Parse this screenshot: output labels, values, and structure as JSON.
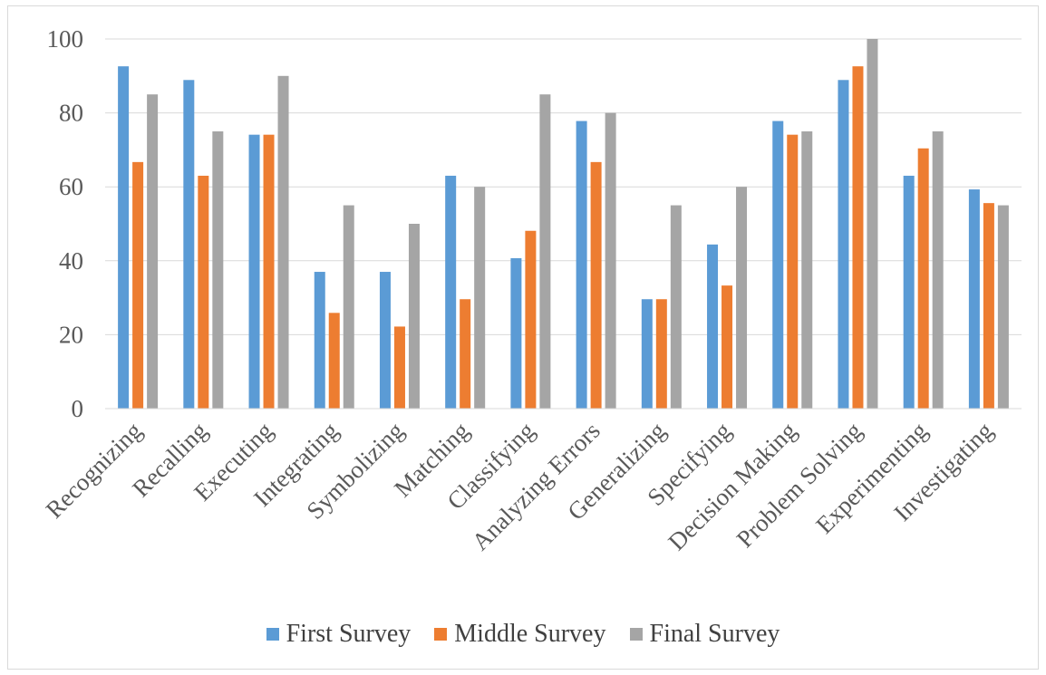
{
  "chart_data": {
    "type": "bar",
    "title": "",
    "xlabel": "",
    "ylabel": "",
    "categories": [
      "Recognizing",
      "Recalling",
      "Executing",
      "Integrating",
      "Symbolizing",
      "Matching",
      "Classifying",
      "Analyzing Errors",
      "Generalizing",
      "Specifying",
      "Decision Making",
      "Problem Solving",
      "Experimenting",
      "Investigating"
    ],
    "series": [
      {
        "name": "First Survey",
        "color": "#5b9bd5",
        "values": [
          92.6,
          88.9,
          74.1,
          37.0,
          37.0,
          63.0,
          40.7,
          77.8,
          29.6,
          44.4,
          77.8,
          88.9,
          63.0,
          59.3
        ]
      },
      {
        "name": "Middle Survey",
        "color": "#ed7d31",
        "values": [
          66.7,
          63.0,
          74.1,
          25.9,
          22.2,
          29.6,
          48.1,
          66.7,
          29.6,
          33.3,
          74.1,
          92.6,
          70.4,
          55.6
        ]
      },
      {
        "name": "Final Survey",
        "color": "#a5a5a5",
        "values": [
          85,
          75,
          90,
          55,
          50,
          60,
          85,
          80,
          55,
          60,
          75,
          100,
          75,
          55
        ]
      }
    ],
    "ylim": [
      0,
      100
    ],
    "yticks": [
      0,
      20,
      40,
      60,
      80,
      100
    ],
    "grid": true,
    "legend_position": "bottom"
  }
}
